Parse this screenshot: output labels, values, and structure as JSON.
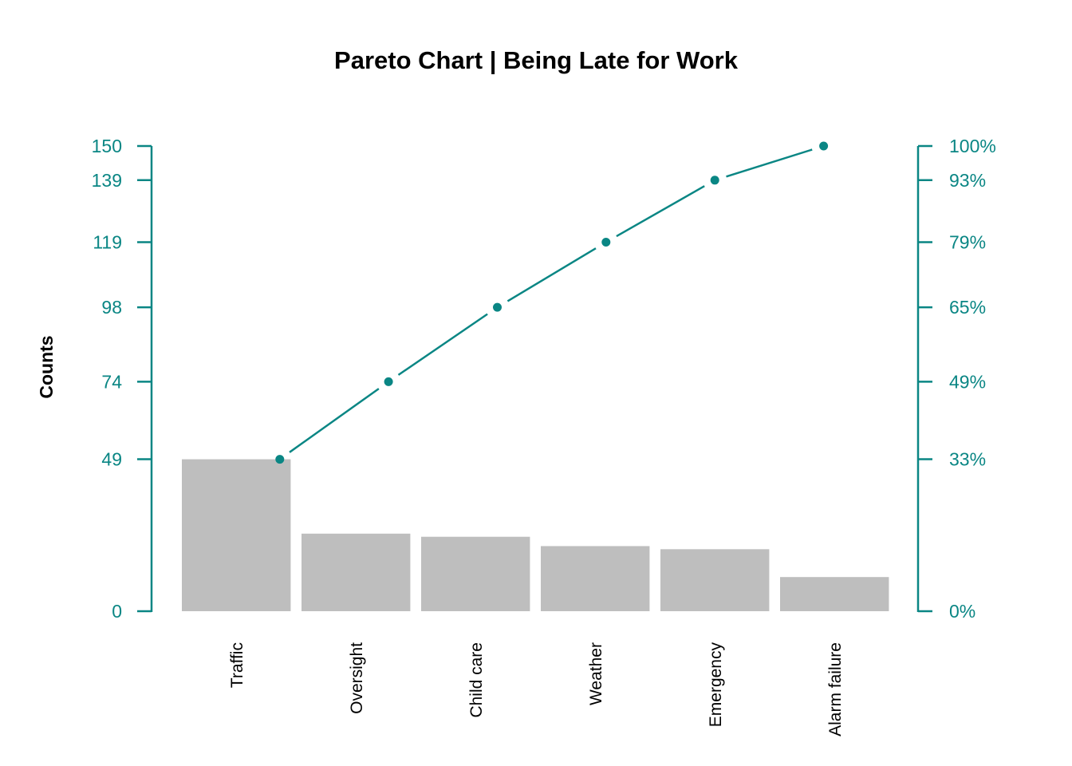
{
  "title": "Pareto Chart | Being Late for Work",
  "colors": {
    "accent_teal": "#0a8684",
    "bar_gray": "#bebebe",
    "text_black": "#000000",
    "background": "#ffffff"
  },
  "left_axis": {
    "label": "Counts",
    "tick_labels": [
      "0",
      "49",
      "74",
      "98",
      "119",
      "139",
      "150"
    ],
    "tick_values": [
      0,
      49,
      74,
      98,
      119,
      139,
      150
    ]
  },
  "right_axis": {
    "tick_labels": [
      "0%",
      "33%",
      "49%",
      "65%",
      "79%",
      "93%",
      "100%"
    ],
    "tick_values": [
      0,
      49,
      74,
      98,
      119,
      139,
      150
    ]
  },
  "chart_data": {
    "type": "bar",
    "subtype": "pareto",
    "title": "Pareto Chart | Being Late for Work",
    "categories": [
      "Traffic",
      "Oversight",
      "Child care",
      "Weather",
      "Emergency",
      "Alarm failure"
    ],
    "series": [
      {
        "name": "Counts",
        "type": "bar",
        "values": [
          49,
          25,
          24,
          21,
          20,
          11
        ]
      },
      {
        "name": "Cumulative counts",
        "type": "line",
        "values": [
          49,
          74,
          98,
          119,
          139,
          150
        ]
      },
      {
        "name": "Cumulative percentage",
        "type": "line",
        "values_percent": [
          33,
          49,
          65,
          79,
          93,
          100
        ]
      }
    ],
    "xlabel": "",
    "ylabel": "Counts",
    "ylim": [
      0,
      150
    ],
    "right_axis_percent_lim": [
      0,
      100
    ],
    "left_tick_labels": [
      "0",
      "49",
      "74",
      "98",
      "119",
      "139",
      "150"
    ],
    "right_tick_labels": [
      "0%",
      "33%",
      "49%",
      "65%",
      "79%",
      "93%",
      "100%"
    ],
    "grid": false,
    "legend": "none"
  }
}
